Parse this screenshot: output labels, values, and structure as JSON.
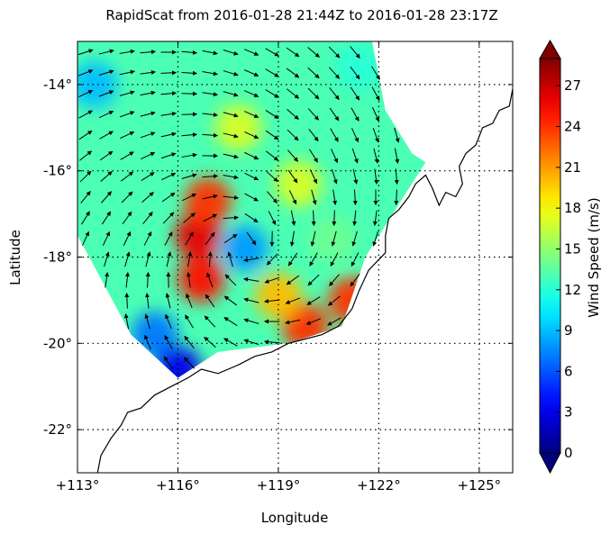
{
  "chart_data": {
    "type": "heatmap",
    "title": "RapidScat  from 2016-01-28 21:44Z to 2016-01-28 23:17Z",
    "xlabel": "Longitude",
    "ylabel": "Latitude",
    "xlim": [
      113,
      126
    ],
    "ylim": [
      -23,
      -13
    ],
    "x_ticks": [
      113,
      116,
      119,
      122,
      125
    ],
    "x_tick_labels": [
      "+113°",
      "+116°",
      "+119°",
      "+122°",
      "+125°"
    ],
    "y_ticks": [
      -14,
      -16,
      -18,
      -20,
      -22
    ],
    "y_tick_labels": [
      "-14°",
      "-16°",
      "-18°",
      "-20°",
      "-22°"
    ],
    "grid": "dotted",
    "colorbar": {
      "label": "Wind Speed (m/s)",
      "range": [
        0,
        29
      ],
      "ticks": [
        0,
        3,
        6,
        9,
        12,
        15,
        18,
        21,
        24,
        27
      ],
      "tick_labels": [
        "0",
        "3",
        "6",
        "9",
        "12",
        "15",
        "18",
        "21",
        "24",
        "27"
      ],
      "colormap": "jet",
      "extend": "both"
    },
    "storm_center": {
      "lon": 118.0,
      "lat": -17.8
    },
    "swath_polygon": [
      [
        113.0,
        -13.0
      ],
      [
        121.8,
        -13.0
      ],
      [
        122.2,
        -14.6
      ],
      [
        123.0,
        -15.6
      ],
      [
        123.4,
        -15.8
      ],
      [
        121.6,
        -18.0
      ],
      [
        120.9,
        -19.6
      ],
      [
        119.3,
        -20.0
      ],
      [
        117.2,
        -20.2
      ],
      [
        116.0,
        -20.8
      ],
      [
        114.6,
        -19.8
      ],
      [
        113.0,
        -17.5
      ]
    ],
    "wind_features": [
      {
        "lon": 116.6,
        "lat": -17.5,
        "speed": 26
      },
      {
        "lon": 116.7,
        "lat": -18.5,
        "speed": 25
      },
      {
        "lon": 116.9,
        "lat": -16.7,
        "speed": 24
      },
      {
        "lon": 119.8,
        "lat": -19.6,
        "speed": 24
      },
      {
        "lon": 119.0,
        "lat": -18.9,
        "speed": 20
      },
      {
        "lon": 118.0,
        "lat": -17.8,
        "speed": 8
      },
      {
        "lon": 117.8,
        "lat": -15.0,
        "speed": 17
      },
      {
        "lon": 119.6,
        "lat": -16.3,
        "speed": 17
      },
      {
        "lon": 120.6,
        "lat": -17.6,
        "speed": 14
      },
      {
        "lon": 113.5,
        "lat": -14.0,
        "speed": 9
      },
      {
        "lon": 115.3,
        "lat": -19.8,
        "speed": 7
      },
      {
        "lon": 116.0,
        "lat": -20.6,
        "speed": 3
      },
      {
        "lon": 121.4,
        "lat": -13.6,
        "speed": 12
      },
      {
        "lon": 121.2,
        "lat": -19.0,
        "speed": 24
      }
    ],
    "coastline": [
      [
        113.6,
        -23.0
      ],
      [
        113.7,
        -22.6
      ],
      [
        114.0,
        -22.2
      ],
      [
        114.3,
        -21.9
      ],
      [
        114.5,
        -21.6
      ],
      [
        114.9,
        -21.5
      ],
      [
        115.3,
        -21.2
      ],
      [
        115.8,
        -21.0
      ],
      [
        116.3,
        -20.8
      ],
      [
        116.7,
        -20.6
      ],
      [
        117.2,
        -20.7
      ],
      [
        117.8,
        -20.5
      ],
      [
        118.3,
        -20.3
      ],
      [
        118.8,
        -20.2
      ],
      [
        119.3,
        -20.0
      ],
      [
        119.8,
        -19.9
      ],
      [
        120.3,
        -19.8
      ],
      [
        120.8,
        -19.6
      ],
      [
        121.2,
        -19.2
      ],
      [
        121.4,
        -18.8
      ],
      [
        121.7,
        -18.3
      ],
      [
        122.2,
        -17.9
      ],
      [
        122.2,
        -17.5
      ],
      [
        122.3,
        -17.1
      ],
      [
        122.6,
        -16.9
      ],
      [
        122.9,
        -16.6
      ],
      [
        123.1,
        -16.3
      ],
      [
        123.4,
        -16.1
      ],
      [
        123.6,
        -16.4
      ],
      [
        123.8,
        -16.8
      ],
      [
        124.0,
        -16.5
      ],
      [
        124.3,
        -16.6
      ],
      [
        124.5,
        -16.3
      ],
      [
        124.4,
        -15.9
      ],
      [
        124.6,
        -15.6
      ],
      [
        124.9,
        -15.4
      ],
      [
        125.1,
        -15.0
      ],
      [
        125.4,
        -14.9
      ],
      [
        125.6,
        -14.6
      ],
      [
        125.9,
        -14.5
      ],
      [
        126.0,
        -14.1
      ]
    ]
  }
}
